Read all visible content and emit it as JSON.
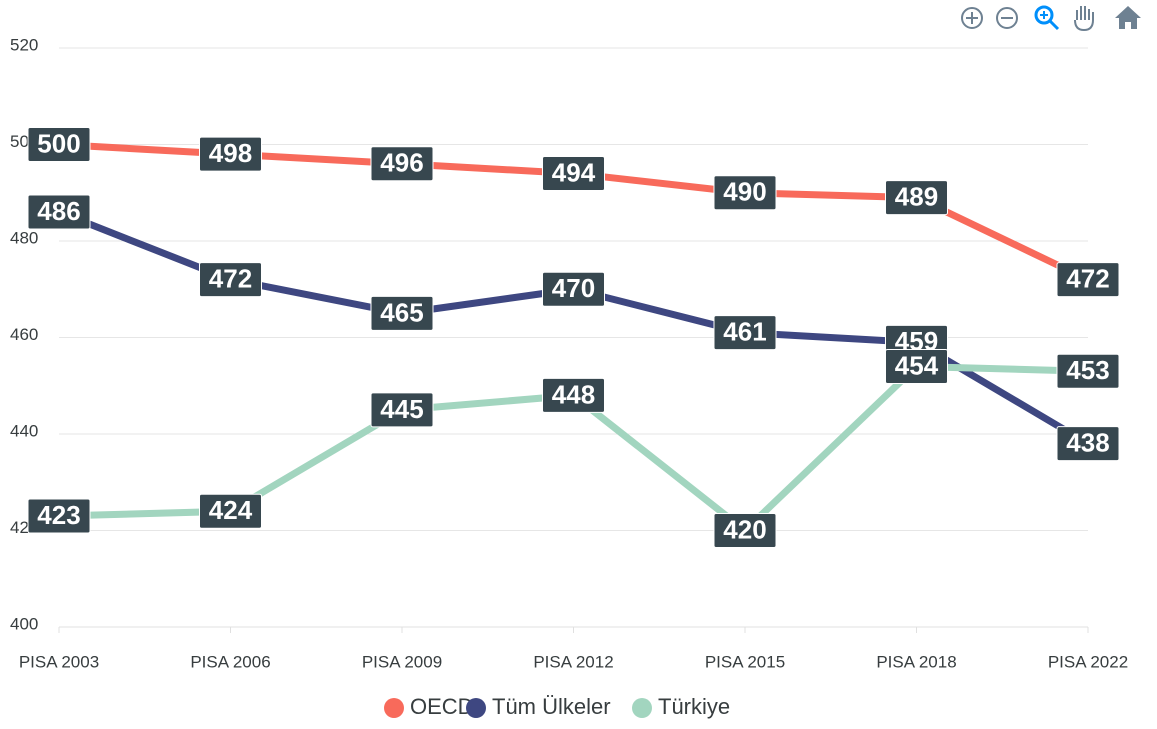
{
  "chart_data": {
    "type": "line",
    "categories": [
      "PISA 2003",
      "PISA 2006",
      "PISA 2009",
      "PISA 2012",
      "PISA 2015",
      "PISA 2018",
      "PISA 2022"
    ],
    "series": [
      {
        "name": "OECD",
        "color": "#f86a5b",
        "values": [
          500,
          498,
          496,
          494,
          490,
          489,
          472
        ]
      },
      {
        "name": "Tüm Ülkeler",
        "color": "#3e4781",
        "values": [
          486,
          472,
          465,
          470,
          461,
          459,
          438
        ]
      },
      {
        "name": "Türkiye",
        "color": "#a2d5bf",
        "values": [
          423,
          424,
          445,
          448,
          420,
          454,
          453
        ]
      }
    ],
    "ylim": [
      400,
      520
    ],
    "yticks": [
      400,
      420,
      440,
      460,
      480,
      500,
      520
    ],
    "grid": true,
    "legend": "bottom"
  }
}
